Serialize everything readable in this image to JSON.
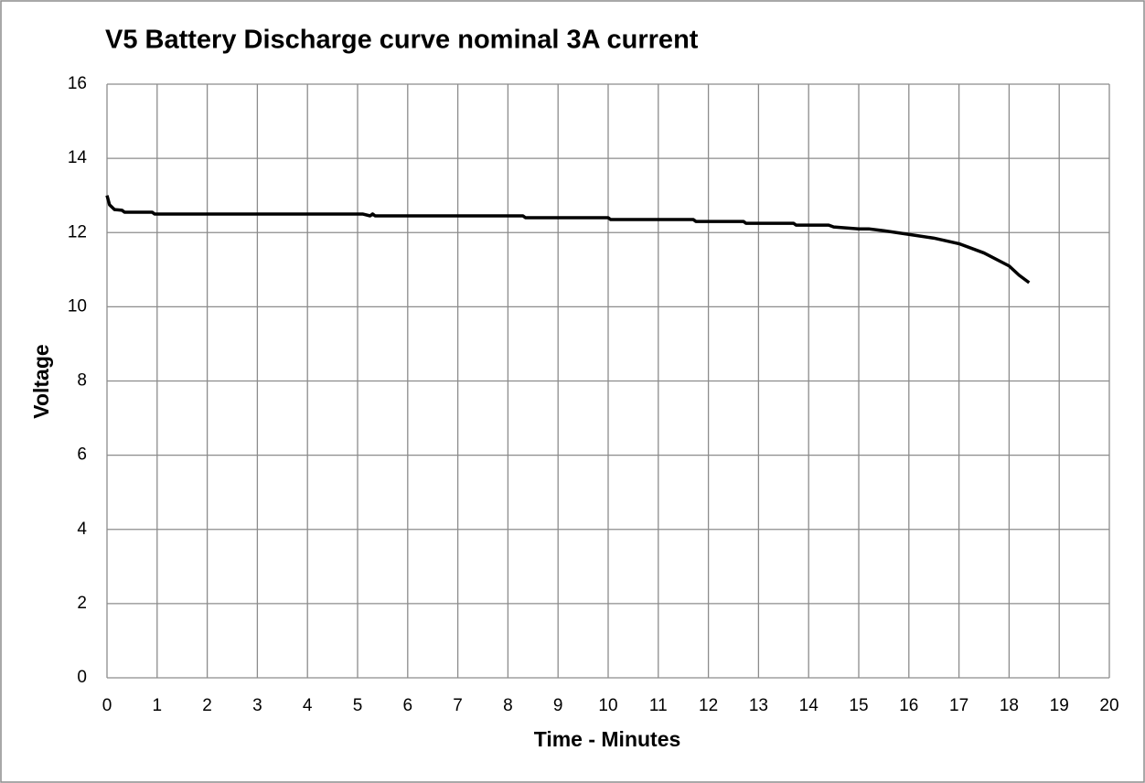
{
  "chart_data": {
    "type": "line",
    "title": "V5 Battery Discharge curve nominal 3A current",
    "x_label": "Time - Minutes",
    "y_label": "Voltage",
    "x": [
      0,
      0.05,
      0.15,
      0.3,
      0.35,
      0.9,
      0.95,
      5.1,
      5.25,
      5.3,
      5.35,
      8.3,
      8.35,
      10,
      10.05,
      11.7,
      11.75,
      12.7,
      12.75,
      13.7,
      13.75,
      14.4,
      14.5,
      15,
      15.2,
      15.5,
      16,
      16.5,
      17,
      17.5,
      18,
      18.2,
      18.4
    ],
    "values": [
      13.0,
      12.75,
      12.62,
      12.6,
      12.55,
      12.55,
      12.5,
      12.5,
      12.45,
      12.5,
      12.45,
      12.45,
      12.4,
      12.4,
      12.35,
      12.35,
      12.3,
      12.3,
      12.25,
      12.25,
      12.2,
      12.2,
      12.15,
      12.1,
      12.1,
      12.05,
      11.95,
      11.85,
      11.7,
      11.45,
      11.1,
      10.85,
      10.65
    ],
    "color": "#000000",
    "xlim": [
      0,
      20
    ],
    "ylim": [
      0,
      16
    ],
    "xticks": [
      0,
      1,
      2,
      3,
      4,
      5,
      6,
      7,
      8,
      9,
      10,
      11,
      12,
      13,
      14,
      15,
      16,
      17,
      18,
      19,
      20
    ],
    "yticks": [
      0,
      2,
      4,
      6,
      8,
      10,
      12,
      14,
      16
    ],
    "grid": true
  }
}
